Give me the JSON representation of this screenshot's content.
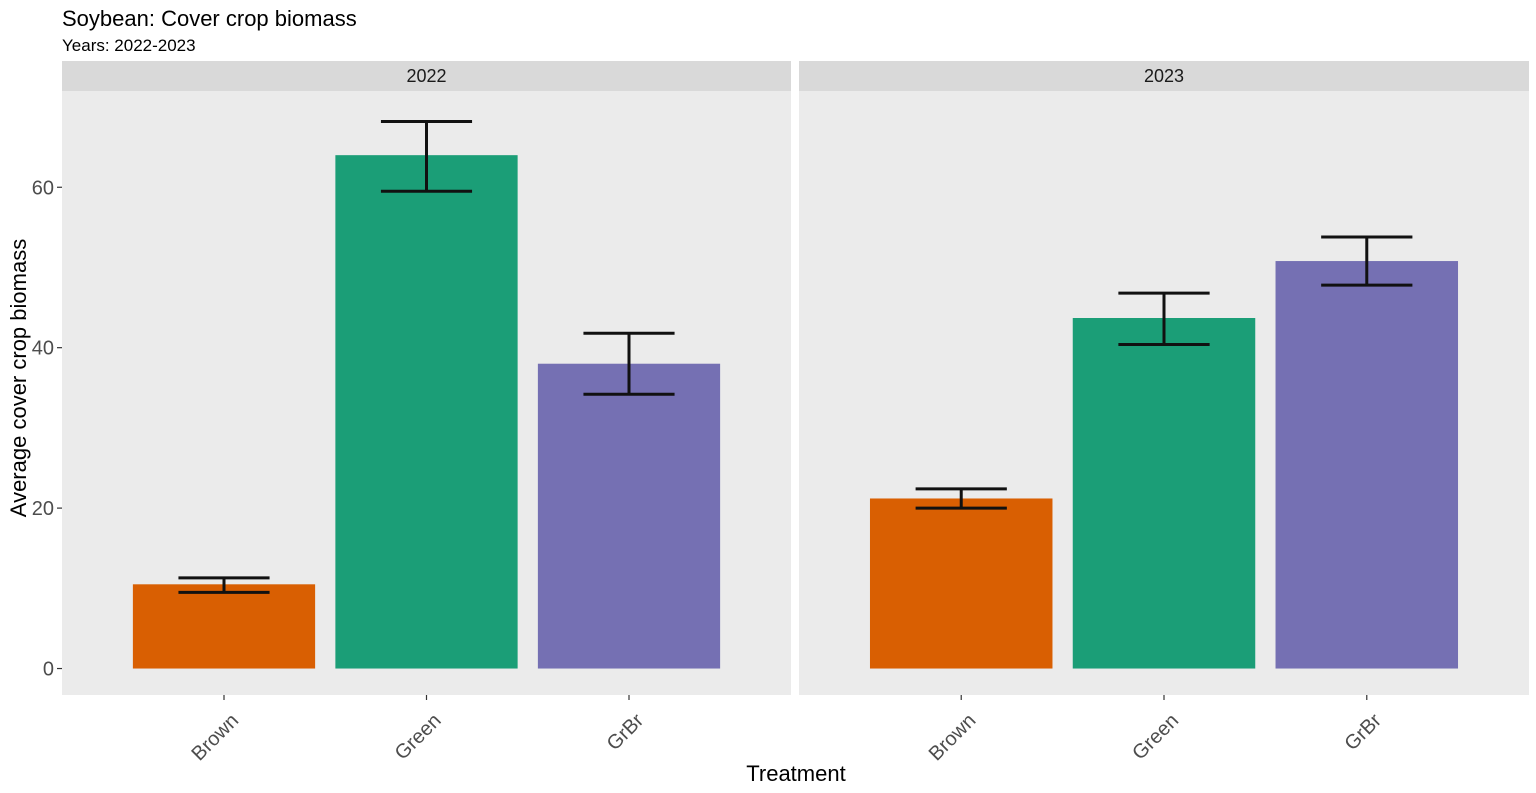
{
  "chart_data": {
    "type": "bar",
    "title": "Soybean: Cover crop biomass",
    "subtitle": "Years: 2022-2023",
    "xlabel": "Treatment",
    "ylabel": "Average cover crop biomass",
    "ylim": [
      -3.3,
      72
    ],
    "yticks": [
      0,
      20,
      40,
      60
    ],
    "grid": false,
    "legend": "none",
    "categories": [
      "Brown",
      "Green",
      "GrBr"
    ],
    "colors": {
      "Brown": "#D95F02",
      "Green": "#1B9E77",
      "GrBr": "#7570B3"
    },
    "panel_background": "#EBEBEB",
    "strip_background": "#D9D9D9",
    "facets": [
      {
        "label": "2022",
        "values": [
          10.5,
          64.0,
          38.0
        ],
        "error_low": [
          9.5,
          59.5,
          34.2
        ],
        "error_high": [
          11.3,
          68.2,
          41.8
        ]
      },
      {
        "label": "2023",
        "values": [
          21.2,
          43.7,
          50.8
        ],
        "error_low": [
          20.0,
          40.4,
          47.8
        ],
        "error_high": [
          22.4,
          46.8,
          53.8
        ]
      }
    ]
  }
}
